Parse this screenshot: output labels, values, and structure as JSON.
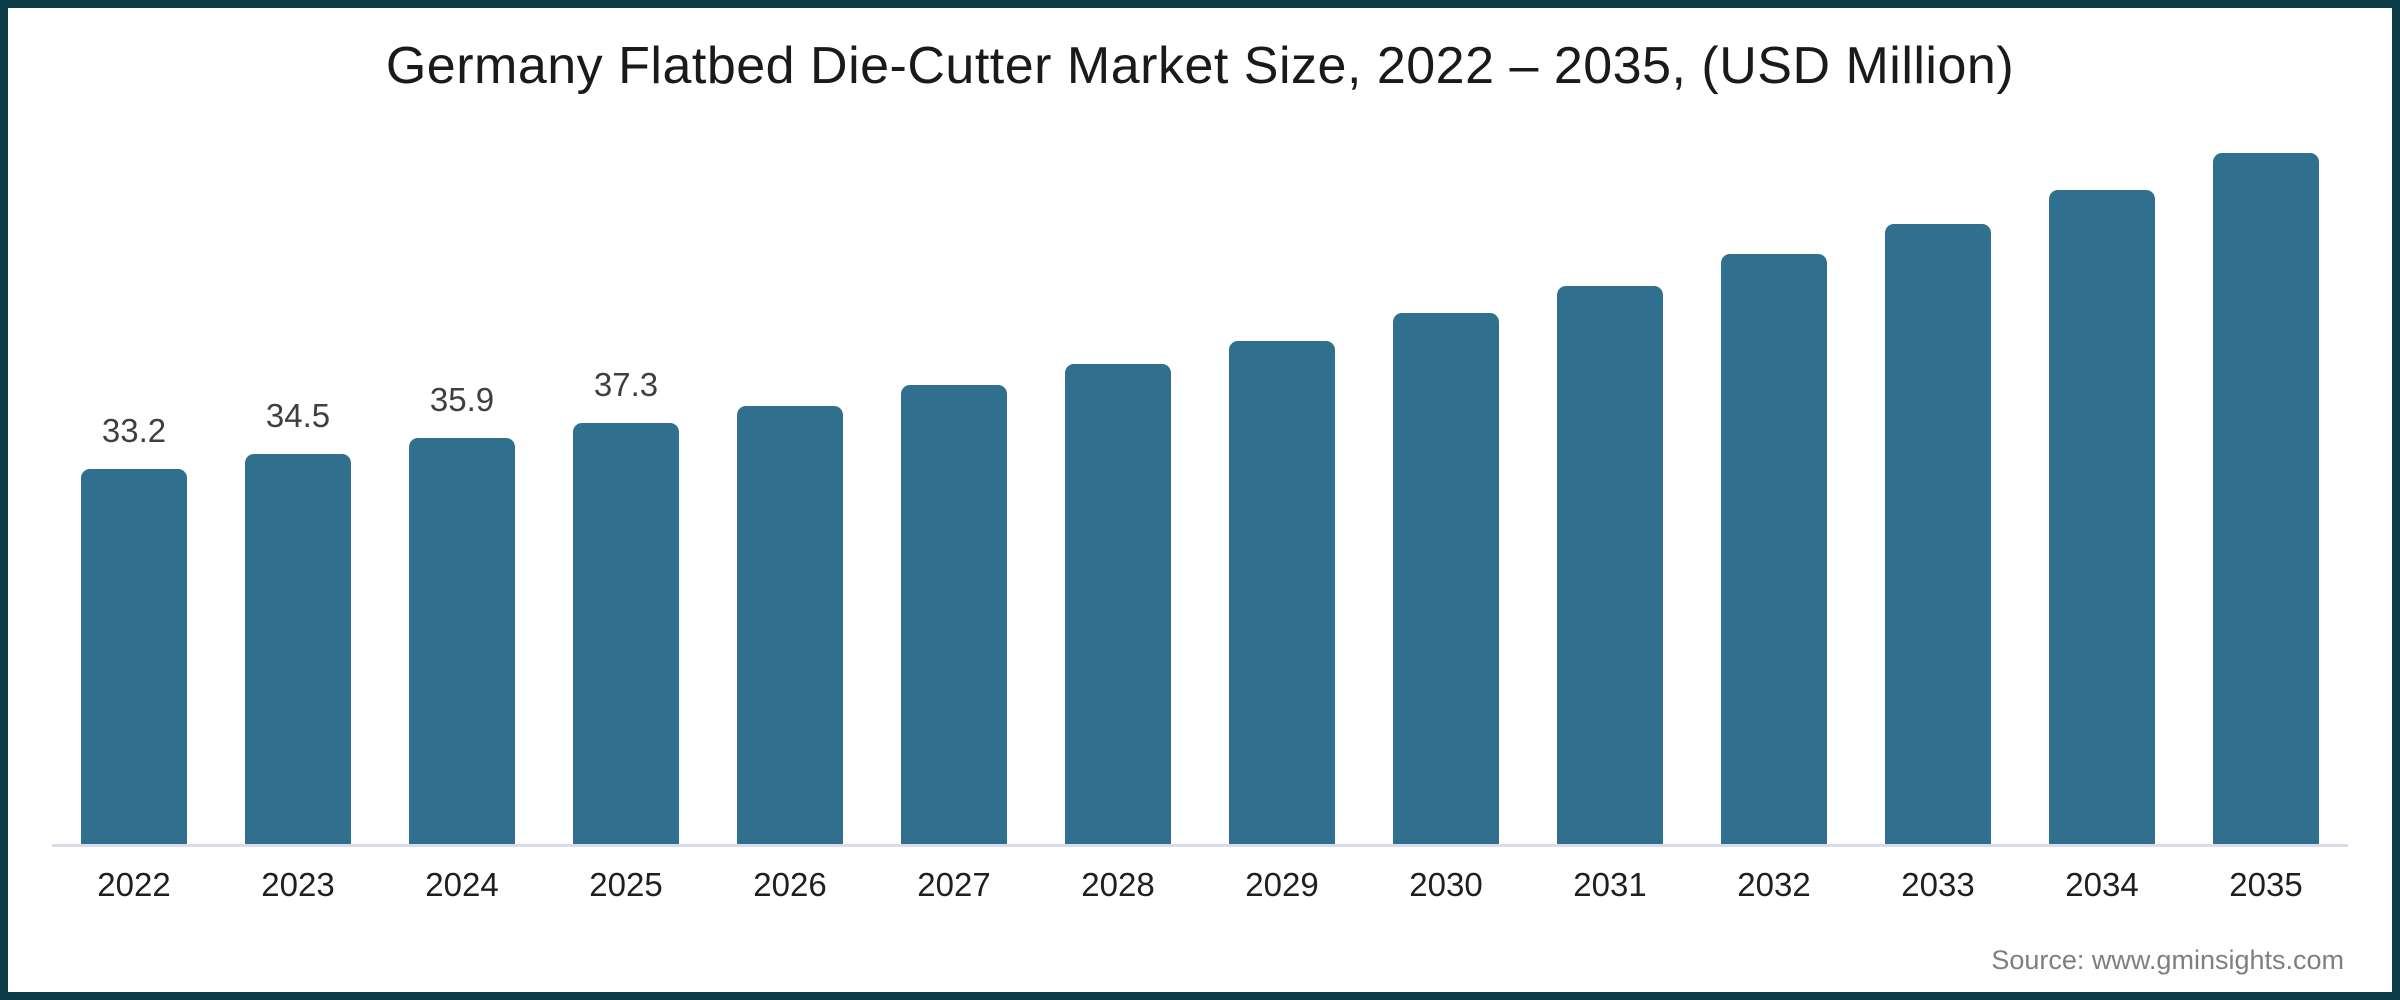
{
  "chart_data": {
    "type": "bar",
    "title": "Germany Flatbed Die-Cutter Market Size, 2022 – 2035, (USD Million)",
    "source": "Source: www.gminsights.com",
    "categories": [
      "2022",
      "2023",
      "2024",
      "2025",
      "2026",
      "2027",
      "2028",
      "2029",
      "2030",
      "2031",
      "2032",
      "2033",
      "2034",
      "2035"
    ],
    "values": [
      33.2,
      34.5,
      35.9,
      37.3,
      38.8,
      40.6,
      42.5,
      44.5,
      47.0,
      49.4,
      52.2,
      54.9,
      57.9,
      61.2
    ],
    "value_labels": [
      "33.2",
      "34.5",
      "35.9",
      "37.3",
      "",
      "",
      "",
      "",
      "",
      "",
      "",
      "",
      "",
      ""
    ],
    "xlabel": "",
    "ylabel": "",
    "ylim": [
      0,
      65.5
    ],
    "legend": "none",
    "gridlines": "off",
    "bar_color": "#316f8e",
    "axis_line_color": "#d7dce6",
    "frame_border_color": "#0d3c49",
    "title_color": "#1a1a1a",
    "value_label_color": "#3f3f3f",
    "x_label_color": "#1f1f1f",
    "source_color": "#7f7f7f"
  }
}
